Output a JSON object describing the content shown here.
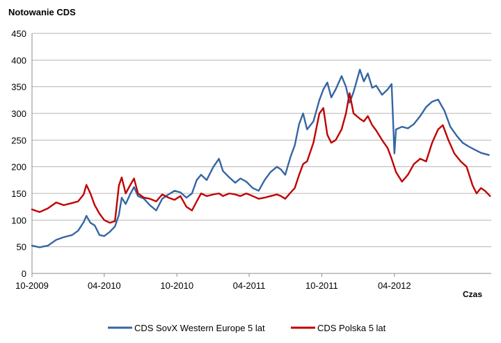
{
  "chart_data": {
    "type": "line",
    "title": "Notowanie CDS",
    "xlabel": "Czas",
    "ylabel": "",
    "ylim": [
      0,
      450
    ],
    "yticks": [
      0,
      50,
      100,
      150,
      200,
      250,
      300,
      350,
      400,
      450
    ],
    "xlim": [
      "2009-10-01",
      "2012-12-01"
    ],
    "xticks": [
      "10-2009",
      "04-2010",
      "10-2010",
      "04-2011",
      "10-2011",
      "04-2012"
    ],
    "grid": "horizontal",
    "legend_position": "bottom",
    "series": [
      {
        "name": "CDS SovX Western Europe 5 lat",
        "color": "#3465a4",
        "points": [
          [
            "2009-10-01",
            52
          ],
          [
            "2009-10-20",
            49
          ],
          [
            "2009-11-10",
            52
          ],
          [
            "2009-12-01",
            63
          ],
          [
            "2009-12-20",
            68
          ],
          [
            "2010-01-10",
            72
          ],
          [
            "2010-01-25",
            80
          ],
          [
            "2010-02-08",
            96
          ],
          [
            "2010-02-15",
            108
          ],
          [
            "2010-02-25",
            95
          ],
          [
            "2010-03-08",
            90
          ],
          [
            "2010-03-20",
            72
          ],
          [
            "2010-04-01",
            70
          ],
          [
            "2010-04-15",
            78
          ],
          [
            "2010-04-28",
            88
          ],
          [
            "2010-05-08",
            110
          ],
          [
            "2010-05-15",
            142
          ],
          [
            "2010-05-25",
            130
          ],
          [
            "2010-06-05",
            148
          ],
          [
            "2010-06-15",
            162
          ],
          [
            "2010-06-25",
            145
          ],
          [
            "2010-07-10",
            140
          ],
          [
            "2010-07-25",
            128
          ],
          [
            "2010-08-10",
            118
          ],
          [
            "2010-08-25",
            140
          ],
          [
            "2010-09-10",
            148
          ],
          [
            "2010-09-25",
            155
          ],
          [
            "2010-10-10",
            152
          ],
          [
            "2010-10-25",
            142
          ],
          [
            "2010-11-08",
            150
          ],
          [
            "2010-11-20",
            175
          ],
          [
            "2010-12-01",
            185
          ],
          [
            "2010-12-15",
            175
          ],
          [
            "2011-01-01",
            200
          ],
          [
            "2011-01-15",
            215
          ],
          [
            "2011-01-25",
            192
          ],
          [
            "2011-02-10",
            180
          ],
          [
            "2011-02-25",
            170
          ],
          [
            "2011-03-10",
            178
          ],
          [
            "2011-03-25",
            172
          ],
          [
            "2011-04-10",
            160
          ],
          [
            "2011-04-25",
            155
          ],
          [
            "2011-05-10",
            175
          ],
          [
            "2011-05-25",
            190
          ],
          [
            "2011-06-10",
            200
          ],
          [
            "2011-06-20",
            195
          ],
          [
            "2011-07-01",
            185
          ],
          [
            "2011-07-15",
            220
          ],
          [
            "2011-07-25",
            240
          ],
          [
            "2011-08-05",
            280
          ],
          [
            "2011-08-15",
            300
          ],
          [
            "2011-08-25",
            270
          ],
          [
            "2011-09-10",
            285
          ],
          [
            "2011-09-25",
            325
          ],
          [
            "2011-10-05",
            345
          ],
          [
            "2011-10-15",
            358
          ],
          [
            "2011-10-25",
            330
          ],
          [
            "2011-11-05",
            345
          ],
          [
            "2011-11-20",
            370
          ],
          [
            "2011-12-01",
            350
          ],
          [
            "2011-12-10",
            320
          ],
          [
            "2011-12-20",
            340
          ],
          [
            "2012-01-05",
            382
          ],
          [
            "2012-01-15",
            360
          ],
          [
            "2012-01-25",
            375
          ],
          [
            "2012-02-05",
            348
          ],
          [
            "2012-02-15",
            352
          ],
          [
            "2012-03-01",
            335
          ],
          [
            "2012-03-15",
            345
          ],
          [
            "2012-03-25",
            355
          ],
          [
            "2012-04-01",
            225
          ],
          [
            "2012-04-05",
            270
          ],
          [
            "2012-04-20",
            275
          ],
          [
            "2012-05-05",
            272
          ],
          [
            "2012-05-20",
            280
          ],
          [
            "2012-06-05",
            295
          ],
          [
            "2012-06-20",
            312
          ],
          [
            "2012-07-05",
            322
          ],
          [
            "2012-07-20",
            326
          ],
          [
            "2012-08-05",
            305
          ],
          [
            "2012-08-20",
            275
          ],
          [
            "2012-09-05",
            258
          ],
          [
            "2012-09-20",
            245
          ],
          [
            "2012-10-05",
            238
          ],
          [
            "2012-10-20",
            232
          ],
          [
            "2012-11-05",
            226
          ],
          [
            "2012-11-25",
            222
          ]
        ]
      },
      {
        "name": "CDS Polska 5 lat",
        "color": "#c00000",
        "points": [
          [
            "2009-10-01",
            120
          ],
          [
            "2009-10-20",
            115
          ],
          [
            "2009-11-10",
            122
          ],
          [
            "2009-12-01",
            133
          ],
          [
            "2009-12-20",
            128
          ],
          [
            "2010-01-10",
            132
          ],
          [
            "2010-01-25",
            135
          ],
          [
            "2010-02-08",
            148
          ],
          [
            "2010-02-15",
            166
          ],
          [
            "2010-02-25",
            150
          ],
          [
            "2010-03-08",
            128
          ],
          [
            "2010-03-20",
            112
          ],
          [
            "2010-04-01",
            100
          ],
          [
            "2010-04-15",
            95
          ],
          [
            "2010-04-28",
            98
          ],
          [
            "2010-05-08",
            165
          ],
          [
            "2010-05-15",
            180
          ],
          [
            "2010-05-25",
            150
          ],
          [
            "2010-06-05",
            165
          ],
          [
            "2010-06-15",
            178
          ],
          [
            "2010-06-25",
            150
          ],
          [
            "2010-07-10",
            142
          ],
          [
            "2010-07-25",
            140
          ],
          [
            "2010-08-10",
            135
          ],
          [
            "2010-08-25",
            148
          ],
          [
            "2010-09-10",
            142
          ],
          [
            "2010-09-25",
            138
          ],
          [
            "2010-10-10",
            145
          ],
          [
            "2010-10-25",
            125
          ],
          [
            "2010-11-08",
            118
          ],
          [
            "2010-11-20",
            135
          ],
          [
            "2010-12-01",
            150
          ],
          [
            "2010-12-15",
            145
          ],
          [
            "2011-01-01",
            148
          ],
          [
            "2011-01-15",
            150
          ],
          [
            "2011-01-25",
            145
          ],
          [
            "2011-02-10",
            150
          ],
          [
            "2011-02-25",
            148
          ],
          [
            "2011-03-10",
            145
          ],
          [
            "2011-03-25",
            150
          ],
          [
            "2011-04-10",
            145
          ],
          [
            "2011-04-25",
            140
          ],
          [
            "2011-05-10",
            142
          ],
          [
            "2011-05-25",
            145
          ],
          [
            "2011-06-10",
            148
          ],
          [
            "2011-06-20",
            145
          ],
          [
            "2011-07-01",
            140
          ],
          [
            "2011-07-15",
            152
          ],
          [
            "2011-07-25",
            160
          ],
          [
            "2011-08-05",
            185
          ],
          [
            "2011-08-15",
            205
          ],
          [
            "2011-08-25",
            210
          ],
          [
            "2011-09-10",
            245
          ],
          [
            "2011-09-25",
            300
          ],
          [
            "2011-10-05",
            310
          ],
          [
            "2011-10-15",
            260
          ],
          [
            "2011-10-25",
            245
          ],
          [
            "2011-11-05",
            250
          ],
          [
            "2011-11-20",
            270
          ],
          [
            "2011-12-01",
            300
          ],
          [
            "2011-12-10",
            338
          ],
          [
            "2011-12-20",
            300
          ],
          [
            "2012-01-05",
            290
          ],
          [
            "2012-01-15",
            285
          ],
          [
            "2012-01-25",
            295
          ],
          [
            "2012-02-05",
            278
          ],
          [
            "2012-02-15",
            268
          ],
          [
            "2012-03-01",
            250
          ],
          [
            "2012-03-15",
            235
          ],
          [
            "2012-03-25",
            215
          ],
          [
            "2012-04-05",
            190
          ],
          [
            "2012-04-20",
            172
          ],
          [
            "2012-05-05",
            185
          ],
          [
            "2012-05-20",
            205
          ],
          [
            "2012-06-05",
            215
          ],
          [
            "2012-06-20",
            210
          ],
          [
            "2012-07-05",
            245
          ],
          [
            "2012-07-20",
            270
          ],
          [
            "2012-08-01",
            278
          ],
          [
            "2012-08-15",
            250
          ],
          [
            "2012-08-30",
            225
          ],
          [
            "2012-09-15",
            210
          ],
          [
            "2012-09-30",
            200
          ],
          [
            "2012-10-15",
            165
          ],
          [
            "2012-10-25",
            150
          ],
          [
            "2012-11-05",
            160
          ],
          [
            "2012-11-15",
            155
          ],
          [
            "2012-11-28",
            145
          ]
        ]
      }
    ]
  }
}
